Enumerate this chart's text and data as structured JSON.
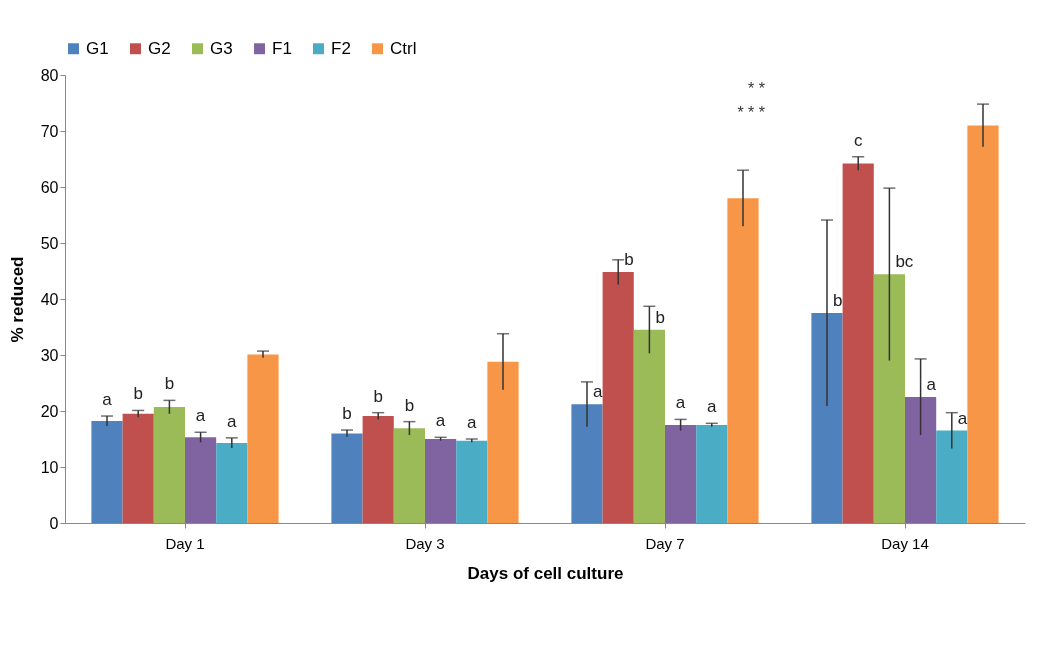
{
  "chart_data": {
    "type": "bar",
    "xlabel": "Days of cell culture",
    "ylabel": "% reduced",
    "categories": [
      "Day 1",
      "Day 3",
      "Day 7",
      "Day 14"
    ],
    "series": [
      {
        "name": "G1",
        "color": "#4f81bd",
        "values": [
          18.2,
          16.0,
          21.2,
          37.5
        ],
        "errors": [
          0.9,
          0.6,
          4.0,
          16.6
        ],
        "value_labels": [
          "a",
          "b",
          "a",
          "b"
        ]
      },
      {
        "name": "G2",
        "color": "#c0504d",
        "values": [
          19.5,
          19.1,
          44.8,
          64.2
        ],
        "errors": [
          0.6,
          0.6,
          2.2,
          1.2
        ],
        "value_labels": [
          "b",
          "b",
          "b",
          "c"
        ]
      },
      {
        "name": "G3",
        "color": "#9bbb59",
        "values": [
          20.7,
          16.9,
          34.5,
          44.4
        ],
        "errors": [
          1.2,
          1.2,
          4.2,
          15.4
        ],
        "value_labels": [
          "b",
          "b",
          "b",
          "bc"
        ]
      },
      {
        "name": "F1",
        "color": "#8064a2",
        "values": [
          15.3,
          15.0,
          17.5,
          22.5
        ],
        "errors": [
          0.9,
          0.3,
          1.0,
          6.8
        ],
        "value_labels": [
          "a",
          "a",
          "a",
          "a"
        ]
      },
      {
        "name": "F2",
        "color": "#4bacc6",
        "values": [
          14.3,
          14.7,
          17.5,
          16.5
        ],
        "errors": [
          0.9,
          0.3,
          0.3,
          3.2
        ],
        "value_labels": [
          "a",
          "a",
          "a",
          "a"
        ]
      },
      {
        "name": "Ctrl",
        "color": "#f79646",
        "values": [
          30.1,
          28.8,
          58.0,
          71.0
        ],
        "errors": [
          0.6,
          5.0,
          5.0,
          3.8
        ],
        "value_labels": [
          null,
          null,
          null,
          null
        ]
      }
    ],
    "annotations": [
      "*     *",
      "*     *     *"
    ],
    "ylim": [
      0,
      80
    ],
    "yticks": [
      0,
      10,
      20,
      30,
      40,
      50,
      60,
      70,
      80
    ],
    "grid": false,
    "legend": "top"
  }
}
